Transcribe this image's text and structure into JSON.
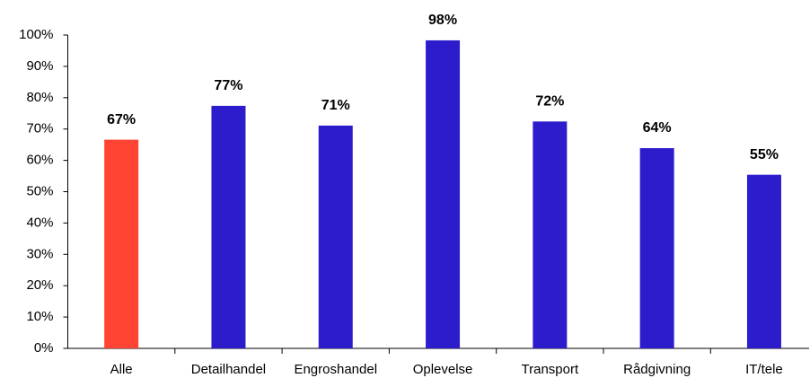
{
  "chart_data": {
    "type": "bar",
    "categories": [
      "Alle",
      "Detailhandel",
      "Engroshandel",
      "Oplevelse",
      "Transport",
      "Rådgivning",
      "IT/tele"
    ],
    "values": [
      66.6,
      77.4,
      71.1,
      98.3,
      72.4,
      63.9,
      55.4
    ],
    "value_labels": [
      "67%",
      "77%",
      "71%",
      "98%",
      "72%",
      "64%",
      "55%"
    ],
    "colors": [
      "#ff4433",
      "#2d1ccc",
      "#2d1ccc",
      "#2d1ccc",
      "#2d1ccc",
      "#2d1ccc",
      "#2d1ccc"
    ],
    "ylim": [
      0,
      100
    ],
    "yticks": [
      {
        "value": 0,
        "label": "0%"
      },
      {
        "value": 10,
        "label": "10%"
      },
      {
        "value": 20,
        "label": "20%"
      },
      {
        "value": 30,
        "label": "30%"
      },
      {
        "value": 40,
        "label": "40%"
      },
      {
        "value": 50,
        "label": "50%"
      },
      {
        "value": 60,
        "label": "60%"
      },
      {
        "value": 70,
        "label": "70%"
      },
      {
        "value": 80,
        "label": "80%"
      },
      {
        "value": 90,
        "label": "90%"
      },
      {
        "value": 100,
        "label": "100%"
      }
    ],
    "grid": false
  }
}
